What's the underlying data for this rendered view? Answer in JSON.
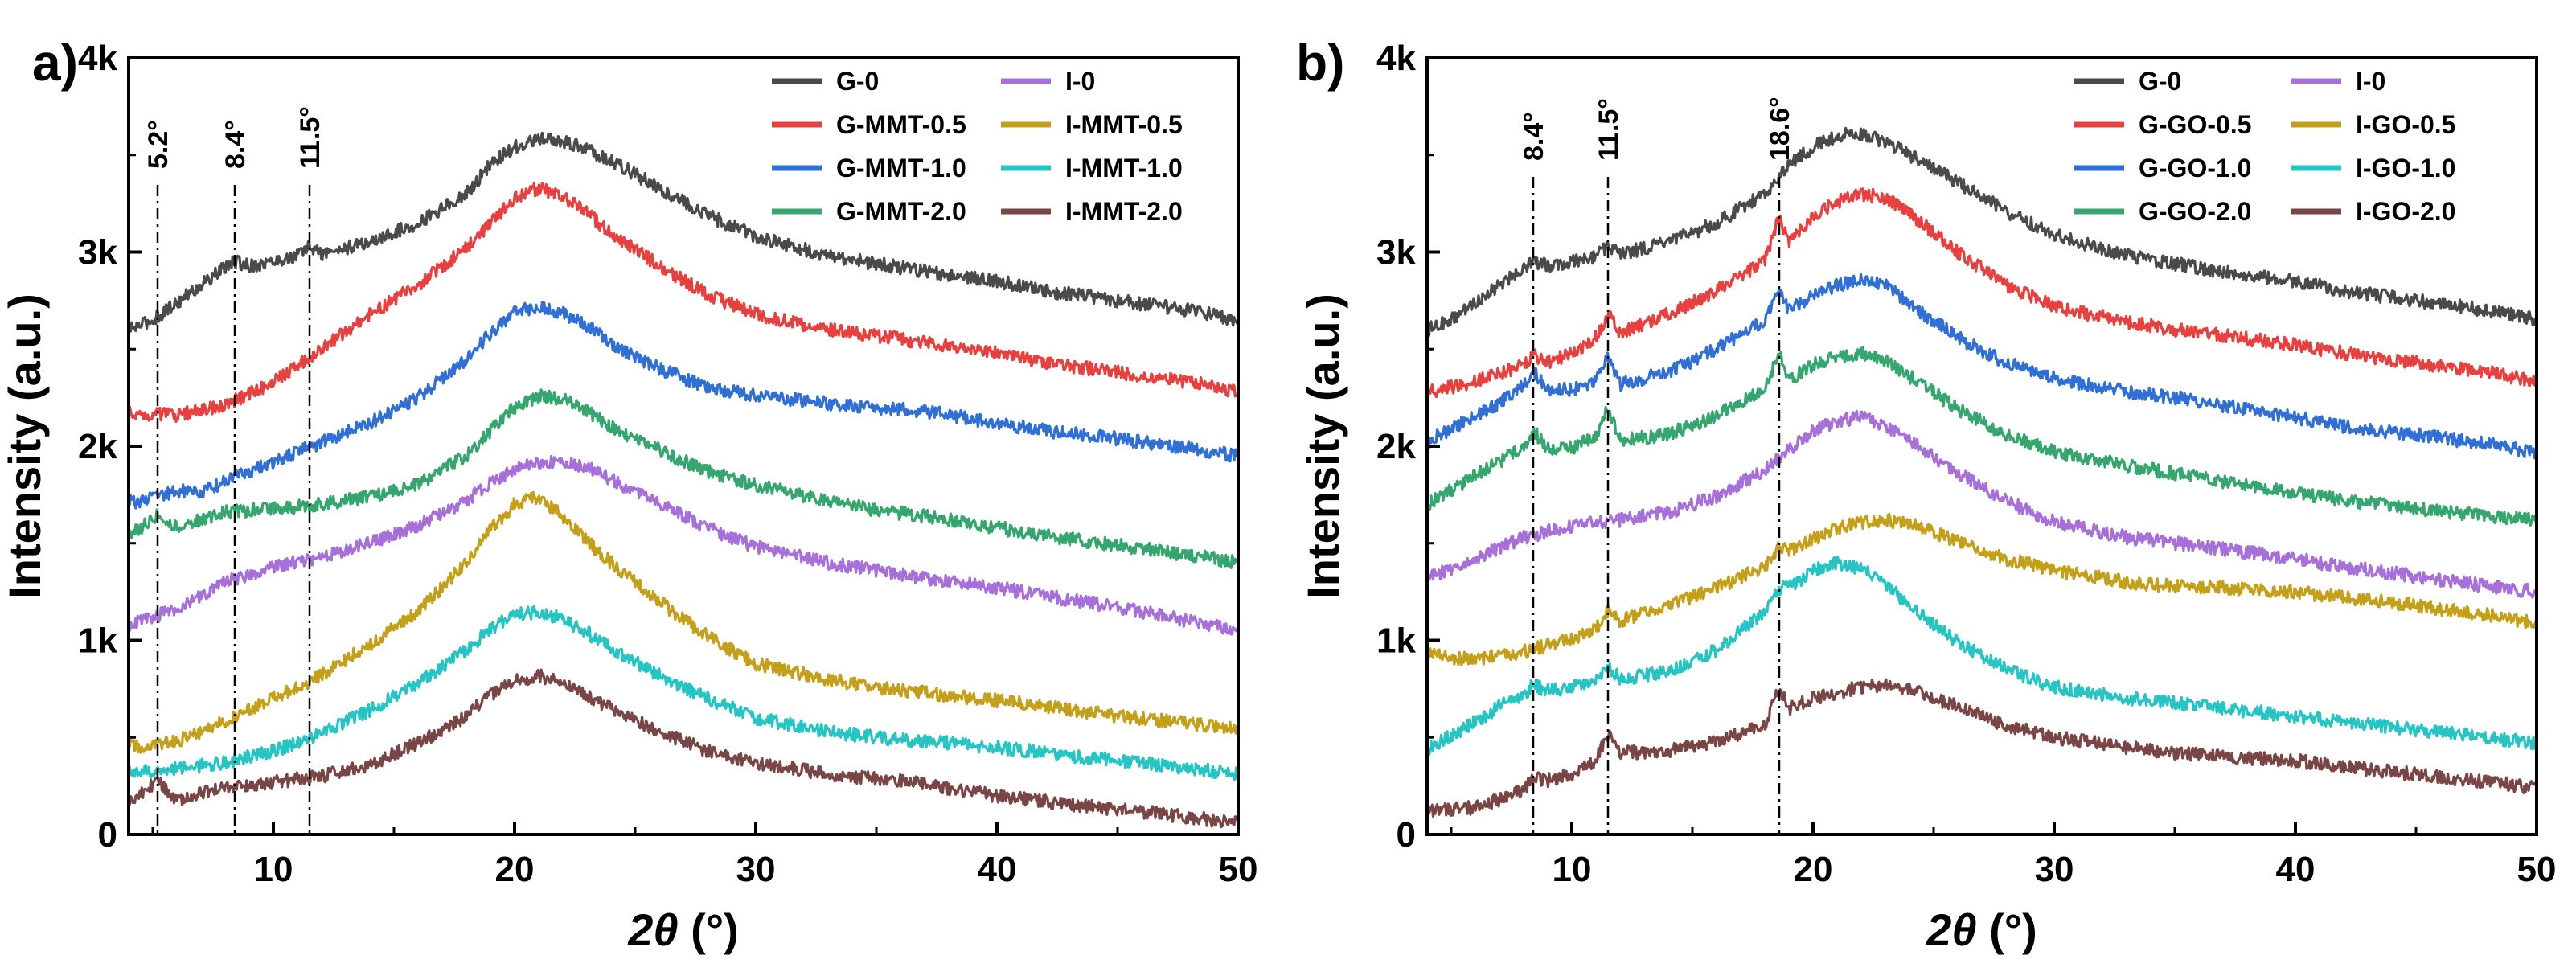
{
  "chart_data": [
    {
      "type": "line",
      "panel_label": "a)",
      "xlabel_symbol": "2θ",
      "xlabel_unit": " (°)",
      "ylabel": "Intensity (a.u.)",
      "xlim": [
        4,
        50
      ],
      "ylim": [
        0,
        4000
      ],
      "xticks": [
        10,
        20,
        30,
        40,
        50
      ],
      "ytick_values": [
        0,
        1000,
        2000,
        3000,
        4000
      ],
      "ytick_labels": [
        "0",
        "1k",
        "2k",
        "3k",
        "4k"
      ],
      "legend_placement": "top-right",
      "peak_markers": [
        {
          "x": 5.2,
          "label": "5.2°"
        },
        {
          "x": 8.4,
          "label": "8.4°"
        },
        {
          "x": 11.5,
          "label": "11.5°"
        }
      ],
      "series": [
        {
          "name": "G-0",
          "color": "#4a4a4a",
          "x": [
            4,
            5,
            6,
            7,
            8,
            8.4,
            9,
            10,
            11,
            11.5,
            12,
            14,
            16,
            18,
            19,
            20,
            21,
            22,
            23,
            24,
            26,
            28,
            30,
            33,
            35,
            37,
            40,
            42,
            45,
            48,
            50
          ],
          "y": [
            2600,
            2650,
            2740,
            2830,
            2920,
            2950,
            2930,
            2950,
            2980,
            3030,
            2990,
            3050,
            3150,
            3300,
            3450,
            3540,
            3580,
            3570,
            3530,
            3470,
            3330,
            3190,
            3080,
            2980,
            2940,
            2900,
            2850,
            2800,
            2750,
            2700,
            2650
          ]
        },
        {
          "name": "G-MMT-0.5",
          "color": "#e8403f",
          "x": [
            4,
            6,
            8,
            10,
            12,
            14,
            16,
            18,
            19,
            20,
            21,
            22,
            23,
            24,
            26,
            28,
            30,
            33,
            35,
            37,
            40,
            42,
            45,
            48,
            50
          ],
          "y": [
            2170,
            2160,
            2210,
            2330,
            2500,
            2680,
            2830,
            3020,
            3150,
            3280,
            3330,
            3290,
            3200,
            3100,
            2930,
            2780,
            2680,
            2600,
            2570,
            2530,
            2480,
            2430,
            2380,
            2330,
            2280
          ]
        },
        {
          "name": "G-MMT-1.0",
          "color": "#2f6fd6",
          "x": [
            4,
            5,
            6,
            7,
            8,
            10,
            12,
            14,
            16,
            18,
            19,
            20,
            21,
            22,
            23,
            24,
            26,
            28,
            30,
            33,
            35,
            37,
            40,
            42,
            45,
            48,
            50
          ],
          "y": [
            1710,
            1730,
            1770,
            1760,
            1820,
            1920,
            2020,
            2120,
            2250,
            2450,
            2580,
            2690,
            2720,
            2690,
            2620,
            2530,
            2400,
            2300,
            2260,
            2220,
            2200,
            2180,
            2120,
            2080,
            2040,
            1990,
            1950
          ]
        },
        {
          "name": "G-MMT-2.0",
          "color": "#35a66e",
          "x": [
            4,
            4.5,
            5.2,
            6,
            7,
            8,
            10,
            12,
            14,
            16,
            18,
            19,
            20,
            21,
            22,
            23,
            24,
            26,
            28,
            30,
            33,
            35,
            37,
            40,
            42,
            45,
            48,
            50
          ],
          "y": [
            1550,
            1580,
            1650,
            1580,
            1620,
            1660,
            1680,
            1700,
            1740,
            1800,
            1950,
            2080,
            2200,
            2260,
            2240,
            2180,
            2100,
            1980,
            1870,
            1800,
            1720,
            1670,
            1640,
            1580,
            1540,
            1490,
            1440,
            1400
          ]
        },
        {
          "name": "I-0",
          "color": "#a66fd9",
          "x": [
            4,
            6,
            8,
            10,
            12,
            14,
            16,
            18,
            19,
            20,
            21,
            22,
            23,
            24,
            26,
            28,
            30,
            33,
            35,
            37,
            40,
            42,
            45,
            48,
            50
          ],
          "y": [
            1080,
            1160,
            1300,
            1380,
            1430,
            1500,
            1590,
            1720,
            1810,
            1880,
            1910,
            1920,
            1890,
            1830,
            1700,
            1580,
            1480,
            1400,
            1360,
            1320,
            1270,
            1230,
            1170,
            1100,
            1050
          ]
        },
        {
          "name": "I-MMT-0.5",
          "color": "#c4a01a",
          "x": [
            4,
            5,
            6,
            8,
            10,
            12,
            14,
            16,
            18,
            19,
            20,
            21,
            22,
            23,
            24,
            26,
            28,
            30,
            33,
            35,
            37,
            40,
            42,
            45,
            48,
            50
          ],
          "y": [
            460,
            450,
            480,
            580,
            700,
            820,
            980,
            1150,
            1400,
            1570,
            1700,
            1740,
            1640,
            1510,
            1400,
            1200,
            1020,
            880,
            800,
            760,
            730,
            690,
            660,
            610,
            570,
            540
          ]
        },
        {
          "name": "I-MMT-1.0",
          "color": "#27c4c4",
          "x": [
            4,
            5,
            6,
            8,
            10,
            12,
            14,
            16,
            18,
            19,
            20,
            21,
            22,
            23,
            24,
            26,
            28,
            30,
            33,
            35,
            37,
            40,
            42,
            45,
            48,
            50
          ],
          "y": [
            330,
            320,
            340,
            370,
            430,
            520,
            640,
            780,
            950,
            1060,
            1130,
            1150,
            1110,
            1040,
            960,
            820,
            700,
            600,
            530,
            500,
            480,
            450,
            420,
            380,
            340,
            310
          ]
        },
        {
          "name": "I-MMT-2.0",
          "color": "#7a4545",
          "x": [
            4,
            4.5,
            5.2,
            6,
            7,
            8,
            10,
            12,
            14,
            16,
            18,
            19,
            20,
            21,
            22,
            23,
            24,
            26,
            28,
            30,
            33,
            35,
            37,
            40,
            42,
            45,
            48,
            50
          ],
          "y": [
            180,
            210,
            280,
            180,
            210,
            240,
            270,
            300,
            360,
            470,
            610,
            720,
            790,
            820,
            780,
            720,
            650,
            530,
            430,
            370,
            310,
            290,
            260,
            200,
            170,
            130,
            90,
            60
          ]
        }
      ]
    },
    {
      "type": "line",
      "panel_label": "b)",
      "xlabel_symbol": "2θ",
      "xlabel_unit": " (°)",
      "ylabel": "Intensity (a.u.)",
      "xlim": [
        4,
        50
      ],
      "ylim": [
        0,
        4000
      ],
      "xticks": [
        10,
        20,
        30,
        40,
        50
      ],
      "ytick_values": [
        0,
        1000,
        2000,
        3000,
        4000
      ],
      "ytick_labels": [
        "0",
        "1k",
        "2k",
        "3k",
        "4k"
      ],
      "legend_placement": "top-right",
      "peak_markers": [
        {
          "x": 8.4,
          "label": "8.4°"
        },
        {
          "x": 11.5,
          "label": "11.5°"
        },
        {
          "x": 18.6,
          "label": "18.6°"
        }
      ],
      "series": [
        {
          "name": "G-0",
          "color": "#4a4a4a",
          "x": [
            4,
            5,
            6,
            7,
            8,
            8.4,
            9,
            10,
            11,
            11.5,
            12,
            14,
            16,
            18,
            19,
            20,
            21,
            22,
            23,
            24,
            26,
            28,
            30,
            33,
            35,
            37,
            40,
            42,
            45,
            48,
            50
          ],
          "y": [
            2600,
            2650,
            2740,
            2830,
            2920,
            2950,
            2930,
            2950,
            2980,
            3030,
            2990,
            3050,
            3150,
            3300,
            3450,
            3540,
            3600,
            3610,
            3570,
            3500,
            3360,
            3210,
            3090,
            2980,
            2940,
            2900,
            2850,
            2800,
            2750,
            2700,
            2650
          ]
        },
        {
          "name": "G-GO-0.5",
          "color": "#e8403f",
          "x": [
            4,
            6,
            8,
            8.4,
            9,
            10,
            11,
            11.5,
            12,
            14,
            16,
            18,
            18.6,
            19,
            20,
            21,
            22,
            23,
            24,
            26,
            28,
            30,
            33,
            35,
            37,
            40,
            42,
            45,
            48,
            50
          ],
          "y": [
            2280,
            2330,
            2420,
            2470,
            2430,
            2480,
            2560,
            2680,
            2580,
            2680,
            2800,
            2950,
            3180,
            3050,
            3180,
            3260,
            3300,
            3280,
            3200,
            3000,
            2830,
            2720,
            2640,
            2600,
            2570,
            2520,
            2480,
            2430,
            2380,
            2330
          ]
        },
        {
          "name": "G-GO-1.0",
          "color": "#2f6fd6",
          "x": [
            4,
            6,
            7,
            8,
            8.4,
            9,
            10,
            11,
            11.5,
            12,
            14,
            16,
            18,
            18.6,
            19,
            20,
            21,
            22,
            23,
            24,
            26,
            28,
            30,
            33,
            35,
            37,
            40,
            42,
            45,
            48,
            50
          ],
          "y": [
            2020,
            2160,
            2220,
            2310,
            2390,
            2290,
            2290,
            2340,
            2470,
            2320,
            2380,
            2500,
            2650,
            2800,
            2700,
            2780,
            2830,
            2860,
            2830,
            2730,
            2560,
            2430,
            2350,
            2280,
            2250,
            2210,
            2150,
            2100,
            2060,
            2010,
            1970
          ]
        },
        {
          "name": "G-GO-2.0",
          "color": "#35a66e",
          "x": [
            4,
            6,
            7,
            8,
            8.4,
            9,
            10,
            11,
            11.5,
            12,
            14,
            16,
            18,
            18.6,
            19,
            20,
            21,
            22,
            23,
            24,
            26,
            28,
            30,
            33,
            35,
            37,
            40,
            42,
            45,
            48,
            50
          ],
          "y": [
            1700,
            1850,
            1920,
            2000,
            2080,
            1990,
            1990,
            2050,
            2200,
            2030,
            2060,
            2160,
            2300,
            2480,
            2340,
            2420,
            2460,
            2480,
            2440,
            2360,
            2190,
            2060,
            1970,
            1900,
            1860,
            1820,
            1760,
            1720,
            1680,
            1640,
            1620
          ]
        },
        {
          "name": "I-0",
          "color": "#a66fd9",
          "x": [
            4,
            6,
            8,
            10,
            12,
            14,
            16,
            18,
            19,
            20,
            21,
            22,
            23,
            24,
            26,
            28,
            30,
            33,
            35,
            37,
            40,
            42,
            45,
            48,
            50
          ],
          "y": [
            1320,
            1420,
            1530,
            1590,
            1620,
            1660,
            1740,
            1880,
            1980,
            2080,
            2130,
            2150,
            2110,
            2030,
            1860,
            1720,
            1610,
            1530,
            1500,
            1470,
            1420,
            1380,
            1330,
            1280,
            1250
          ]
        },
        {
          "name": "I-GO-0.5",
          "color": "#c4a01a",
          "x": [
            4,
            5,
            6,
            8,
            10,
            11,
            11.5,
            12,
            14,
            16,
            18,
            18.6,
            19,
            20,
            21,
            22,
            23,
            24,
            26,
            28,
            30,
            33,
            35,
            37,
            40,
            42,
            45,
            48,
            50
          ],
          "y": [
            940,
            910,
            900,
            940,
            1010,
            1060,
            1150,
            1100,
            1180,
            1270,
            1380,
            1480,
            1460,
            1520,
            1580,
            1610,
            1620,
            1600,
            1510,
            1420,
            1360,
            1300,
            1280,
            1270,
            1250,
            1220,
            1180,
            1130,
            1090
          ]
        },
        {
          "name": "I-GO-1.0",
          "color": "#27c4c4",
          "x": [
            4,
            6,
            7,
            8,
            8.4,
            9,
            10,
            11,
            11.5,
            12,
            14,
            16,
            18,
            18.6,
            19,
            20,
            21,
            22,
            23,
            24,
            26,
            28,
            30,
            33,
            35,
            37,
            40,
            42,
            45,
            48,
            50
          ],
          "y": [
            440,
            580,
            660,
            720,
            770,
            740,
            760,
            800,
            870,
            800,
            840,
            950,
            1150,
            1270,
            1270,
            1360,
            1400,
            1370,
            1290,
            1180,
            990,
            850,
            760,
            700,
            680,
            650,
            610,
            580,
            540,
            500,
            470
          ]
        },
        {
          "name": "I-GO-2.0",
          "color": "#7a4545",
          "x": [
            4,
            6,
            7,
            8,
            8.4,
            9,
            10,
            11,
            11.5,
            12,
            14,
            16,
            18,
            18.6,
            19,
            20,
            21,
            22,
            23,
            24,
            26,
            28,
            30,
            33,
            35,
            37,
            40,
            42,
            45,
            48,
            50
          ],
          "y": [
            120,
            140,
            180,
            230,
            290,
            280,
            310,
            380,
            520,
            420,
            430,
            480,
            560,
            760,
            650,
            700,
            730,
            760,
            770,
            750,
            660,
            560,
            500,
            450,
            420,
            400,
            380,
            350,
            310,
            270,
            240
          ]
        }
      ]
    }
  ]
}
